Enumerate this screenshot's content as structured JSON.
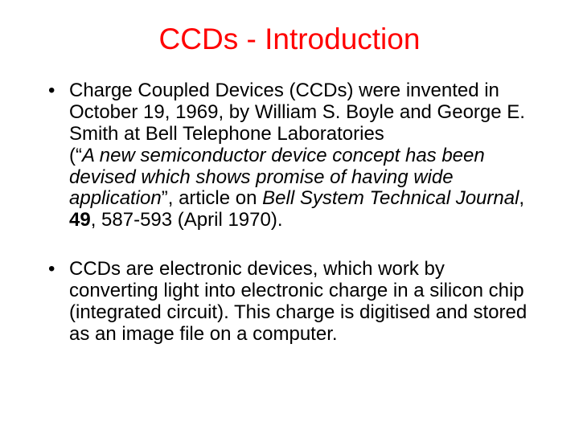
{
  "title": {
    "text": "CCDs - Introduction",
    "color": "#ff0000",
    "fontsize": 37
  },
  "body_fontsize": 24,
  "body_color": "#000000",
  "background_color": "#ffffff",
  "bullets": [
    {
      "runs": [
        {
          "text": "Charge Coupled Devices (CCDs) were invented in October 19, 1969, by William S. Boyle and George E. Smith at Bell Telephone Laboratories"
        },
        {
          "text": "(“",
          "break_before": true
        },
        {
          "text": "A new semiconductor device concept has been devised which shows promise of having wide application",
          "italic": true
        },
        {
          "text": "”, article on "
        },
        {
          "text": "Bell System Technical Journal",
          "italic": true
        },
        {
          "text": ", "
        },
        {
          "text": "49",
          "bold": true
        },
        {
          "text": ", 587-593 (April 1970)."
        }
      ]
    },
    {
      "runs": [
        {
          "text": "CCDs are electronic devices, which work by converting light into electronic charge in a silicon chip (integrated circuit). This charge is digitised and stored as an image file on a computer."
        }
      ]
    }
  ]
}
